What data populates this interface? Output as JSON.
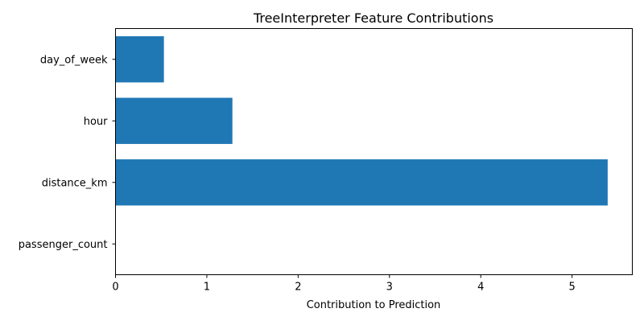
{
  "chart_data": {
    "type": "bar",
    "orientation": "horizontal",
    "title": "TreeInterpreter Feature Contributions",
    "xlabel": "Contribution to Prediction",
    "ylabel": "",
    "categories": [
      "passenger_count",
      "distance_km",
      "hour",
      "day_of_week"
    ],
    "values": [
      0.0,
      5.39,
      1.28,
      0.53
    ],
    "xlim": [
      0,
      5.66
    ],
    "xticks": [
      "0",
      "1",
      "2",
      "3",
      "4",
      "5"
    ],
    "grid": false,
    "bar_color": "#1f77b4"
  }
}
